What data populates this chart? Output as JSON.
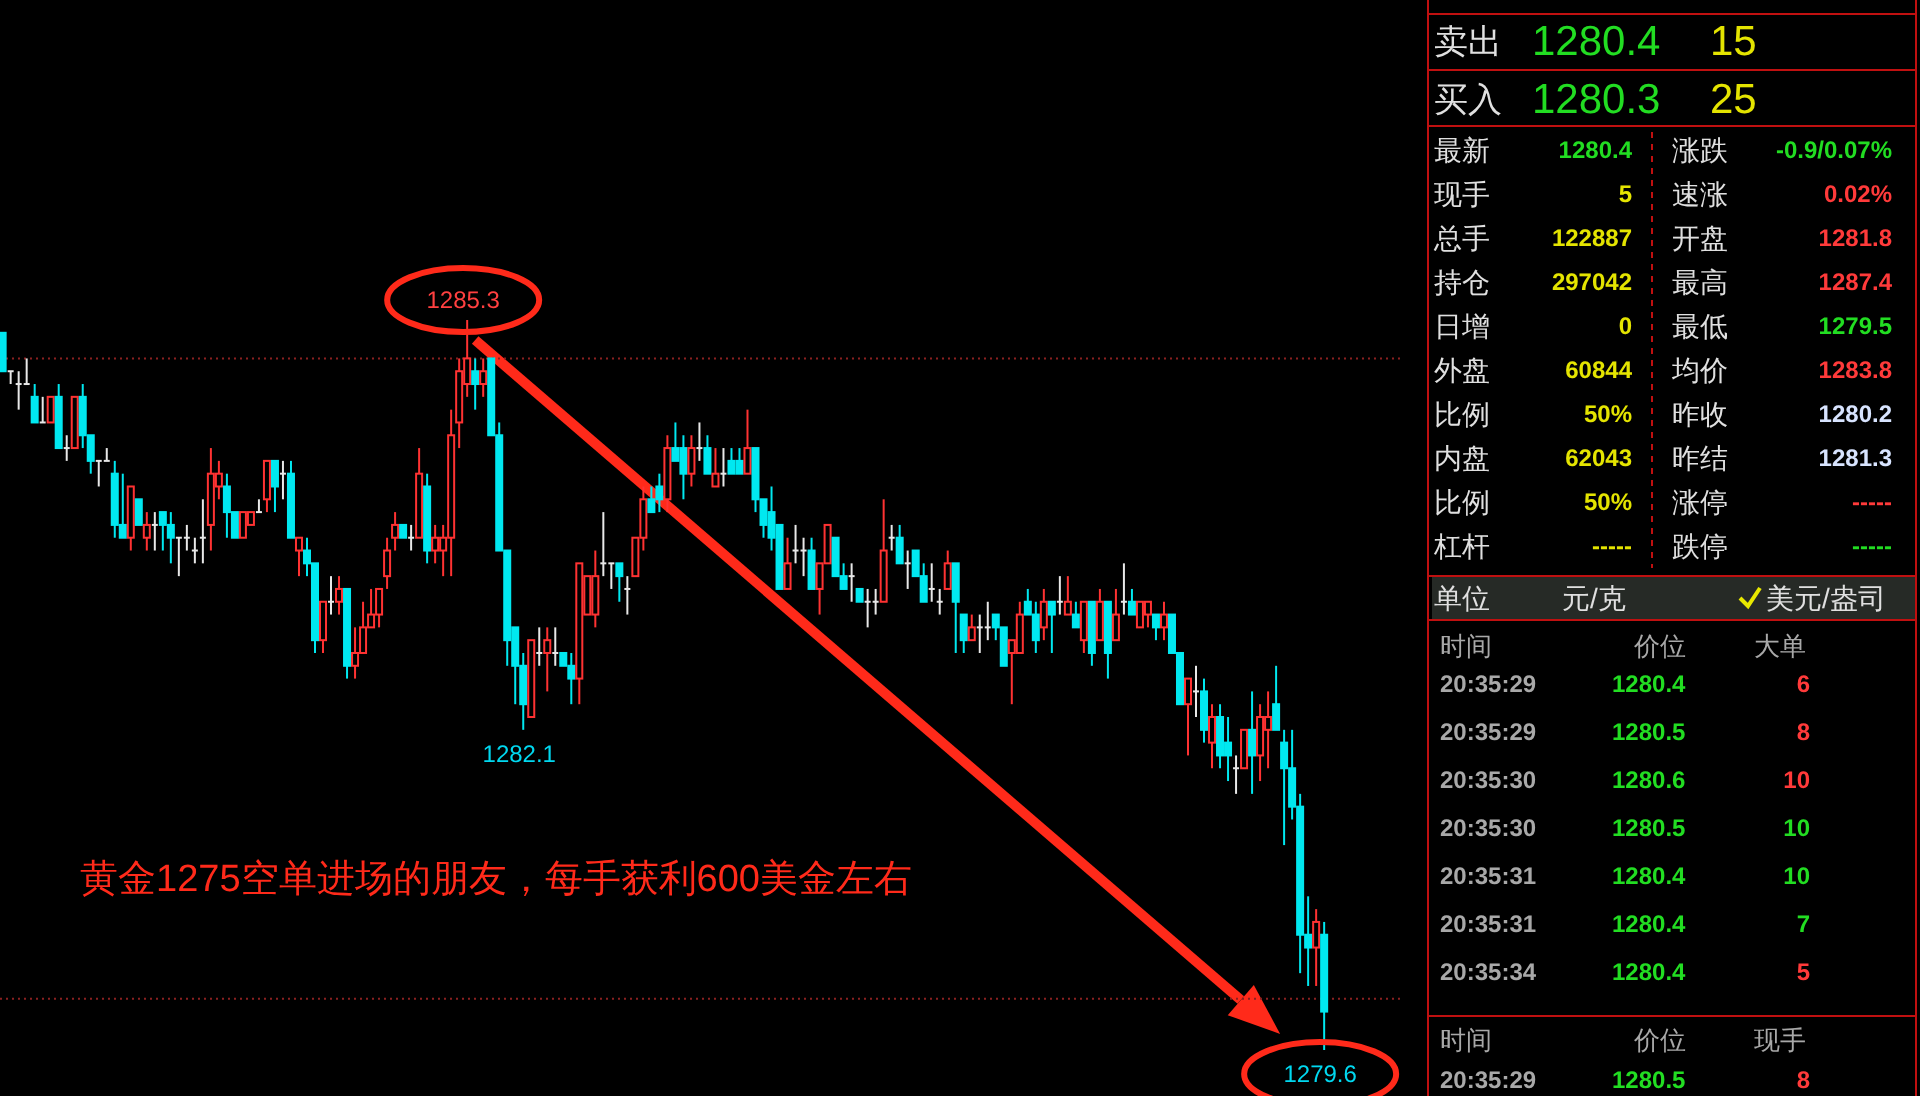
{
  "chart_data": [
    {
      "type": "candlestick",
      "ohlc": [
        [
          1285.2,
          1285.2,
          1284.9,
          1284.9
        ],
        [
          1284.9,
          1284.9,
          1284.8,
          1284.9
        ],
        [
          1284.8,
          1284.9,
          1284.6,
          1284.8
        ],
        [
          1284.8,
          1285.0,
          1284.8,
          1284.8
        ],
        [
          1284.7,
          1284.8,
          1284.5,
          1284.5
        ],
        [
          1284.5,
          1284.7,
          1284.5,
          1284.5
        ],
        [
          1284.5,
          1284.7,
          1284.5,
          1284.7
        ],
        [
          1284.7,
          1284.8,
          1284.3,
          1284.3
        ],
        [
          1284.3,
          1284.4,
          1284.2,
          1284.3
        ],
        [
          1284.3,
          1284.7,
          1284.3,
          1284.7
        ],
        [
          1284.7,
          1284.8,
          1284.3,
          1284.4
        ],
        [
          1284.4,
          1284.4,
          1284.1,
          1284.2
        ],
        [
          1284.2,
          1284.2,
          1284.0,
          1284.2
        ],
        [
          1284.2,
          1284.3,
          1284.2,
          1284.2
        ],
        [
          1284.1,
          1284.2,
          1283.6,
          1283.7
        ],
        [
          1283.7,
          1284.1,
          1283.6,
          1283.6
        ],
        [
          1283.6,
          1284.0,
          1283.5,
          1284.0
        ],
        [
          1283.9,
          1283.9,
          1283.7,
          1283.7
        ],
        [
          1283.6,
          1283.8,
          1283.5,
          1283.7
        ],
        [
          1283.7,
          1283.8,
          1283.5,
          1283.7
        ],
        [
          1283.8,
          1283.8,
          1283.5,
          1283.7
        ],
        [
          1283.7,
          1283.8,
          1283.4,
          1283.6
        ],
        [
          1283.6,
          1283.6,
          1283.3,
          1283.6
        ],
        [
          1283.6,
          1283.7,
          1283.5,
          1283.6
        ],
        [
          1283.5,
          1283.6,
          1283.4,
          1283.5
        ],
        [
          1283.6,
          1283.9,
          1283.4,
          1283.6
        ],
        [
          1283.7,
          1284.3,
          1283.5,
          1284.1
        ],
        [
          1284.0,
          1284.2,
          1283.9,
          1284.1
        ],
        [
          1284.0,
          1284.1,
          1283.6,
          1283.8
        ],
        [
          1283.8,
          1283.8,
          1283.6,
          1283.6
        ],
        [
          1283.6,
          1283.8,
          1283.6,
          1283.8
        ],
        [
          1283.7,
          1283.8,
          1283.7,
          1283.8
        ],
        [
          1283.8,
          1283.9,
          1283.8,
          1283.8
        ],
        [
          1283.9,
          1284.2,
          1283.8,
          1284.2
        ],
        [
          1284.2,
          1284.2,
          1283.8,
          1284.0
        ],
        [
          1284.1,
          1284.2,
          1283.9,
          1284.1
        ],
        [
          1284.1,
          1284.2,
          1283.6,
          1283.6
        ],
        [
          1283.5,
          1283.6,
          1283.3,
          1283.6
        ],
        [
          1283.5,
          1283.6,
          1283.3,
          1283.4
        ],
        [
          1283.4,
          1283.4,
          1282.7,
          1282.8
        ],
        [
          1282.8,
          1283.1,
          1282.7,
          1283.1
        ],
        [
          1283.1,
          1283.3,
          1283.0,
          1283.1
        ],
        [
          1283.1,
          1283.3,
          1283.0,
          1283.2
        ],
        [
          1283.2,
          1283.2,
          1282.5,
          1282.6
        ],
        [
          1282.6,
          1282.9,
          1282.5,
          1282.7
        ],
        [
          1282.7,
          1283.1,
          1282.7,
          1282.9
        ],
        [
          1282.9,
          1283.2,
          1282.9,
          1283.0
        ],
        [
          1283.0,
          1283.2,
          1282.9,
          1283.2
        ],
        [
          1283.3,
          1283.6,
          1283.2,
          1283.5
        ],
        [
          1283.6,
          1283.8,
          1283.5,
          1283.7
        ],
        [
          1283.7,
          1283.7,
          1283.6,
          1283.6
        ],
        [
          1283.6,
          1283.7,
          1283.5,
          1283.6
        ],
        [
          1283.6,
          1284.3,
          1283.6,
          1284.1
        ],
        [
          1284.0,
          1284.1,
          1283.4,
          1283.5
        ],
        [
          1283.5,
          1283.7,
          1283.4,
          1283.6
        ],
        [
          1283.5,
          1283.7,
          1283.3,
          1283.6
        ],
        [
          1283.6,
          1284.6,
          1283.3,
          1284.4
        ],
        [
          1284.5,
          1285.0,
          1284.3,
          1284.9
        ],
        [
          1284.8,
          1285.3,
          1284.7,
          1285.0
        ],
        [
          1284.9,
          1285.0,
          1284.6,
          1284.8
        ],
        [
          1284.8,
          1285.0,
          1284.7,
          1284.9
        ],
        [
          1285.0,
          1285.0,
          1284.4,
          1284.4
        ],
        [
          1284.4,
          1284.5,
          1283.5,
          1283.5
        ],
        [
          1283.5,
          1283.5,
          1282.6,
          1282.8
        ],
        [
          1282.9,
          1282.9,
          1282.3,
          1282.6
        ],
        [
          1282.6,
          1282.7,
          1282.1,
          1282.3
        ],
        [
          1282.2,
          1282.8,
          1282.2,
          1282.8
        ],
        [
          1282.7,
          1282.9,
          1282.6,
          1282.7
        ],
        [
          1282.7,
          1282.9,
          1282.4,
          1282.8
        ],
        [
          1282.7,
          1282.9,
          1282.6,
          1282.7
        ],
        [
          1282.7,
          1282.7,
          1282.6,
          1282.6
        ],
        [
          1282.6,
          1282.7,
          1282.3,
          1282.5
        ],
        [
          1282.5,
          1283.4,
          1282.3,
          1283.4
        ],
        [
          1283.0,
          1283.3,
          1283.0,
          1283.3
        ],
        [
          1283.0,
          1283.5,
          1282.9,
          1283.3
        ],
        [
          1283.4,
          1283.8,
          1283.3,
          1283.4
        ],
        [
          1283.4,
          1283.4,
          1283.2,
          1283.4
        ],
        [
          1283.4,
          1283.4,
          1283.1,
          1283.3
        ],
        [
          1283.2,
          1283.3,
          1283.0,
          1283.2
        ],
        [
          1283.3,
          1283.6,
          1283.3,
          1283.6
        ],
        [
          1283.6,
          1284.0,
          1283.5,
          1283.9
        ],
        [
          1283.9,
          1284.0,
          1283.8,
          1283.8
        ],
        [
          1284.0,
          1284.1,
          1283.8,
          1283.9
        ],
        [
          1283.9,
          1284.4,
          1283.8,
          1284.3
        ],
        [
          1284.3,
          1284.5,
          1284.2,
          1284.2
        ],
        [
          1284.3,
          1284.4,
          1283.9,
          1284.1
        ],
        [
          1284.1,
          1284.4,
          1284.0,
          1284.3
        ],
        [
          1284.3,
          1284.5,
          1284.2,
          1284.3
        ],
        [
          1284.3,
          1284.4,
          1284.1,
          1284.1
        ],
        [
          1284.0,
          1284.3,
          1284.0,
          1284.1
        ],
        [
          1284.1,
          1284.3,
          1284.0,
          1284.1
        ],
        [
          1284.2,
          1284.3,
          1284.1,
          1284.1
        ],
        [
          1284.2,
          1284.3,
          1284.1,
          1284.1
        ],
        [
          1284.1,
          1284.6,
          1284.1,
          1284.3
        ],
        [
          1284.3,
          1284.3,
          1283.8,
          1283.9
        ],
        [
          1283.9,
          1283.9,
          1283.6,
          1283.7
        ],
        [
          1283.8,
          1284.0,
          1283.5,
          1283.6
        ],
        [
          1283.7,
          1283.7,
          1283.2,
          1283.2
        ],
        [
          1283.2,
          1283.6,
          1283.2,
          1283.4
        ],
        [
          1283.5,
          1283.7,
          1283.4,
          1283.5
        ],
        [
          1283.5,
          1283.6,
          1283.3,
          1283.5
        ],
        [
          1283.5,
          1283.6,
          1283.2,
          1283.2
        ],
        [
          1283.2,
          1283.4,
          1283.0,
          1283.4
        ],
        [
          1283.4,
          1283.7,
          1283.4,
          1283.7
        ],
        [
          1283.6,
          1283.6,
          1283.3,
          1283.3
        ],
        [
          1283.3,
          1283.4,
          1283.2,
          1283.2
        ],
        [
          1283.3,
          1283.4,
          1283.1,
          1283.3
        ],
        [
          1283.2,
          1283.2,
          1283.1,
          1283.1
        ],
        [
          1283.1,
          1283.2,
          1282.9,
          1283.1
        ],
        [
          1283.1,
          1283.2,
          1283.0,
          1283.1
        ],
        [
          1283.1,
          1283.9,
          1283.1,
          1283.5
        ],
        [
          1283.6,
          1283.7,
          1283.5,
          1283.6
        ],
        [
          1283.6,
          1283.7,
          1283.4,
          1283.4
        ],
        [
          1283.4,
          1283.5,
          1283.2,
          1283.4
        ],
        [
          1283.5,
          1283.5,
          1283.3,
          1283.3
        ],
        [
          1283.3,
          1283.4,
          1283.1,
          1283.1
        ],
        [
          1283.2,
          1283.4,
          1283.1,
          1283.2
        ],
        [
          1283.1,
          1283.2,
          1283.0,
          1283.1
        ],
        [
          1283.2,
          1283.5,
          1283.2,
          1283.4
        ],
        [
          1283.4,
          1283.4,
          1282.7,
          1283.1
        ],
        [
          1283.0,
          1283.0,
          1282.7,
          1282.8
        ],
        [
          1282.8,
          1283.0,
          1282.8,
          1282.9
        ],
        [
          1282.9,
          1283.0,
          1282.7,
          1282.9
        ],
        [
          1282.9,
          1283.1,
          1282.8,
          1282.9
        ],
        [
          1283.0,
          1283.0,
          1282.8,
          1282.9
        ],
        [
          1282.9,
          1282.9,
          1282.6,
          1282.6
        ],
        [
          1282.7,
          1282.8,
          1282.3,
          1282.8
        ],
        [
          1282.7,
          1283.1,
          1282.7,
          1283.0
        ],
        [
          1283.1,
          1283.2,
          1283.0,
          1283.0
        ],
        [
          1283.0,
          1283.1,
          1282.7,
          1282.8
        ],
        [
          1282.9,
          1283.2,
          1282.8,
          1283.1
        ],
        [
          1283.1,
          1283.1,
          1282.7,
          1283.0
        ],
        [
          1283.1,
          1283.3,
          1283.0,
          1283.1
        ],
        [
          1283.0,
          1283.3,
          1283.0,
          1283.1
        ],
        [
          1283.0,
          1283.1,
          1282.9,
          1282.9
        ],
        [
          1282.8,
          1283.1,
          1282.7,
          1283.1
        ],
        [
          1283.1,
          1283.1,
          1282.6,
          1282.7
        ],
        [
          1282.8,
          1283.2,
          1282.8,
          1283.1
        ],
        [
          1283.1,
          1283.1,
          1282.5,
          1282.7
        ],
        [
          1282.8,
          1283.2,
          1282.8,
          1283.0
        ],
        [
          1283.1,
          1283.4,
          1283.0,
          1283.1
        ],
        [
          1283.1,
          1283.2,
          1283.0,
          1283.0
        ],
        [
          1282.9,
          1283.1,
          1282.9,
          1283.1
        ],
        [
          1283.0,
          1283.1,
          1282.9,
          1283.1
        ],
        [
          1283.0,
          1283.0,
          1282.8,
          1282.9
        ],
        [
          1282.9,
          1283.1,
          1282.8,
          1283.0
        ],
        [
          1283.0,
          1283.0,
          1282.7,
          1282.7
        ],
        [
          1282.7,
          1282.7,
          1282.3,
          1282.3
        ],
        [
          1282.3,
          1282.5,
          1281.9,
          1282.5
        ],
        [
          1282.4,
          1282.6,
          1282.2,
          1282.4
        ],
        [
          1282.4,
          1282.5,
          1282.0,
          1282.1
        ],
        [
          1282.0,
          1282.3,
          1281.8,
          1282.2
        ],
        [
          1282.2,
          1282.3,
          1281.8,
          1281.9
        ],
        [
          1282.0,
          1282.2,
          1281.7,
          1281.9
        ],
        [
          1281.8,
          1281.9,
          1281.6,
          1281.8
        ],
        [
          1281.8,
          1282.1,
          1281.8,
          1282.1
        ],
        [
          1282.1,
          1282.4,
          1281.6,
          1281.9
        ],
        [
          1281.9,
          1282.3,
          1281.7,
          1282.2
        ],
        [
          1282.1,
          1282.4,
          1281.8,
          1282.2
        ],
        [
          1282.3,
          1282.6,
          1282.1,
          1282.1
        ],
        [
          1282.0,
          1282.1,
          1281.2,
          1281.8
        ],
        [
          1281.8,
          1282.1,
          1281.4,
          1281.5
        ],
        [
          1281.5,
          1281.6,
          1280.2,
          1280.5
        ],
        [
          1280.5,
          1280.8,
          1280.1,
          1280.4
        ],
        [
          1280.4,
          1280.7,
          1280.1,
          1280.6
        ],
        [
          1280.5,
          1280.6,
          1279.6,
          1279.9
        ]
      ],
      "ref_lines": [
        {
          "axis": "y",
          "value": 1285.0,
          "color": "#8b2020",
          "line_style": "dotted"
        },
        {
          "axis": "y",
          "value": 1280.0,
          "color": "#8b2020",
          "line_style": "dotted"
        }
      ],
      "annotations": [
        {
          "text": "1285.3",
          "y": 1285.3
        },
        {
          "text": "1282.1",
          "y": 1282.1
        },
        {
          "text": "1279.6",
          "y": 1279.6
        },
        "黄金1275空单进场的朋友，每手获利600美金左右"
      ]
    },
    {
      "type": "other",
      "annotations": [
        "卖出",
        "1280.4",
        "15",
        "买入",
        "1280.3",
        "25",
        "最新",
        "1280.4",
        "涨跌",
        "-0.9/0.07%",
        "现手",
        "5",
        "速涨",
        "0.02%",
        "总手",
        "122887",
        "开盘",
        "1281.8",
        "持仓",
        "297042",
        "最高",
        "1287.4",
        "日增",
        "0",
        "最低",
        "1279.5",
        "外盘",
        "60844",
        "均价",
        "1283.8",
        "比例",
        "50%",
        "昨收",
        "1280.2",
        "内盘",
        "62043",
        "昨结",
        "1281.3",
        "比例",
        "50%",
        "涨停",
        "-----",
        "杠杆",
        "-----",
        "跌停",
        "-----",
        "单位",
        "元/克",
        "美元/盎司",
        "时间",
        "价位",
        "大单",
        "20:35:29",
        "1280.4",
        "6",
        "20:35:29",
        "1280.5",
        "8",
        "20:35:30",
        "1280.6",
        "10",
        "20:35:30",
        "1280.5",
        "10",
        "20:35:31",
        "1280.4",
        "10",
        "20:35:31",
        "1280.4",
        "7",
        "20:35:34",
        "1280.4",
        "5",
        "时间",
        "价位",
        "现手",
        "20:35:29",
        "1280.5",
        "8"
      ]
    }
  ]
}
